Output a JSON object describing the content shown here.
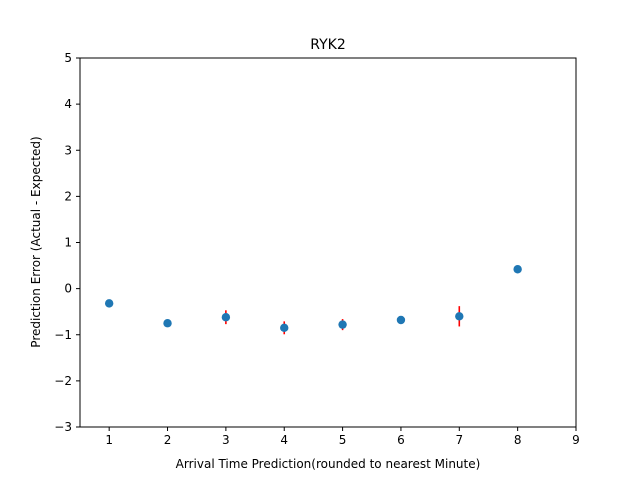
{
  "chart_data": {
    "type": "scatter",
    "title": "RYK2",
    "xlabel": "Arrival Time Prediction(rounded to nearest Minute)",
    "ylabel": "Prediction Error (Actual - Expected)",
    "xlim": [
      0.5,
      9
    ],
    "ylim": [
      -3,
      5
    ],
    "xticks": [
      1,
      2,
      3,
      4,
      5,
      6,
      7,
      8,
      9
    ],
    "yticks": [
      -3,
      -2,
      -1,
      0,
      1,
      2,
      3,
      4,
      5
    ],
    "xtick_labels": [
      "1",
      "2",
      "3",
      "4",
      "5",
      "6",
      "7",
      "8",
      "9"
    ],
    "ytick_labels": [
      "−3",
      "−2",
      "−1",
      "0",
      "1",
      "2",
      "3",
      "4",
      "5"
    ],
    "grid": false,
    "points": [
      {
        "x": 1,
        "y": -0.32,
        "err": 0.03
      },
      {
        "x": 2,
        "y": -0.75,
        "err": 0.08
      },
      {
        "x": 3,
        "y": -0.62,
        "err": 0.15
      },
      {
        "x": 4,
        "y": -0.85,
        "err": 0.14
      },
      {
        "x": 5,
        "y": -0.78,
        "err": 0.12
      },
      {
        "x": 6,
        "y": -0.68,
        "err": 0.06
      },
      {
        "x": 7,
        "y": -0.6,
        "err": 0.22
      },
      {
        "x": 8,
        "y": 0.42,
        "err": 0.03
      }
    ],
    "colors": {
      "marker": "#1f77b4",
      "errorbar": "#ff0000",
      "axes": "#000000"
    }
  }
}
